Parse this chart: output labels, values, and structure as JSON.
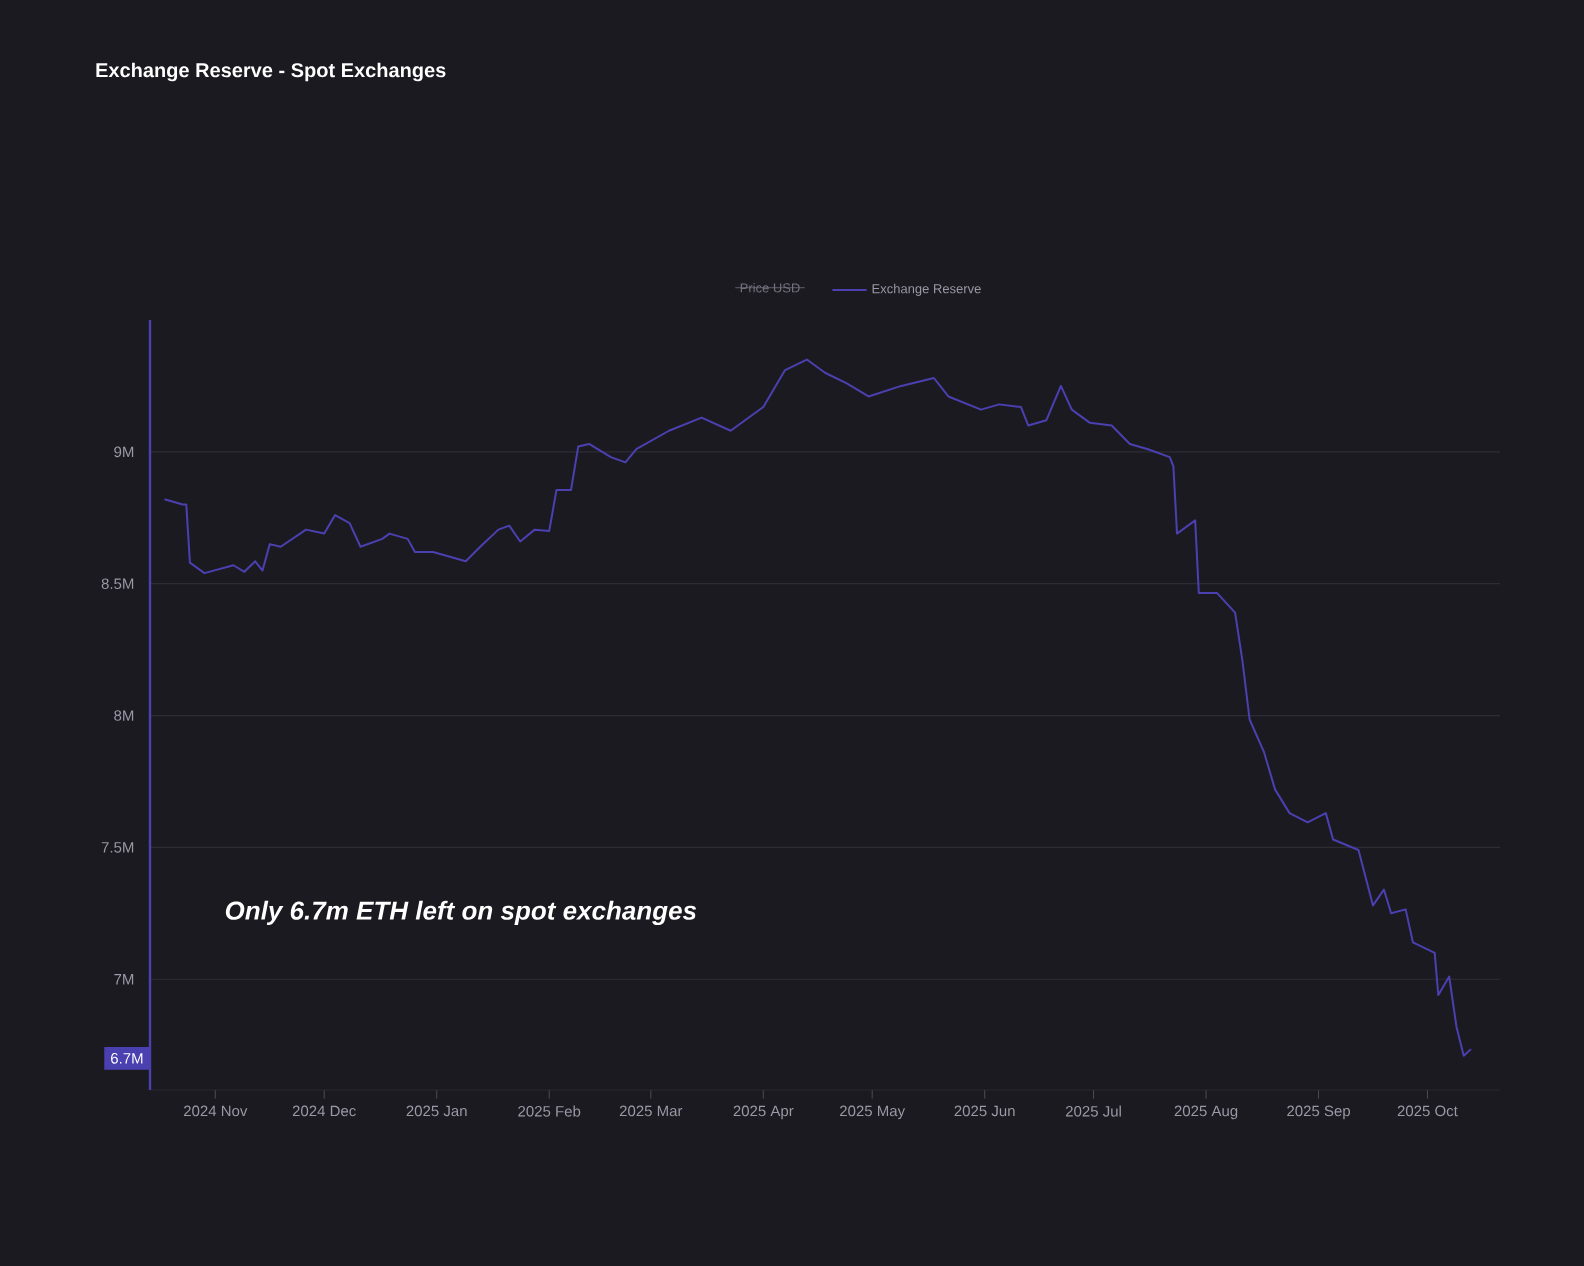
{
  "chart_data": {
    "type": "line",
    "title": "Exchange Reserve - Spot Exchanges",
    "x": [
      "2024-10-18",
      "2024-10-23",
      "2024-10-24",
      "2024-10-25",
      "2024-10-29",
      "2024-11-06",
      "2024-11-09",
      "2024-11-12",
      "2024-11-14",
      "2024-11-16",
      "2024-11-19",
      "2024-11-26",
      "2024-12-01",
      "2024-12-04",
      "2024-12-08",
      "2024-12-11",
      "2024-12-17",
      "2024-12-19",
      "2024-12-24",
      "2024-12-26",
      "2024-12-31",
      "2025-01-09",
      "2025-01-13",
      "2025-01-18",
      "2025-01-21",
      "2025-01-24",
      "2025-01-28",
      "2025-02-01",
      "2025-02-03",
      "2025-02-07",
      "2025-02-09",
      "2025-02-12",
      "2025-02-18",
      "2025-02-22",
      "2025-02-25",
      "2025-03-06",
      "2025-03-15",
      "2025-03-23",
      "2025-04-01",
      "2025-04-07",
      "2025-04-13",
      "2025-04-18",
      "2025-04-24",
      "2025-04-30",
      "2025-05-09",
      "2025-05-18",
      "2025-05-22",
      "2025-05-31",
      "2025-06-05",
      "2025-06-11",
      "2025-06-13",
      "2025-06-18",
      "2025-06-22",
      "2025-06-25",
      "2025-06-30",
      "2025-07-06",
      "2025-07-11",
      "2025-07-16",
      "2025-07-22",
      "2025-07-23",
      "2025-07-24",
      "2025-07-29",
      "2025-07-30",
      "2025-08-04",
      "2025-08-09",
      "2025-08-11",
      "2025-08-13",
      "2025-08-17",
      "2025-08-20",
      "2025-08-24",
      "2025-08-29",
      "2025-09-03",
      "2025-09-05",
      "2025-09-12",
      "2025-09-16",
      "2025-09-19",
      "2025-09-21",
      "2025-09-25",
      "2025-09-27",
      "2025-10-03",
      "2025-10-04",
      "2025-10-07",
      "2025-10-09",
      "2025-10-11",
      "2025-10-13"
    ],
    "series": [
      {
        "name": "Exchange Reserve",
        "color": "#4b40b0",
        "values": [
          8820000,
          8800000,
          8800000,
          8580000,
          8540000,
          8570000,
          8545000,
          8585000,
          8550000,
          8650000,
          8640000,
          8705000,
          8690000,
          8760000,
          8730000,
          8640000,
          8670000,
          8690000,
          8670000,
          8620000,
          8620000,
          8585000,
          8640000,
          8705000,
          8720000,
          8660000,
          8705000,
          8700000,
          8855000,
          8855000,
          9020000,
          9030000,
          8980000,
          8960000,
          9010000,
          9080000,
          9130000,
          9080000,
          9170000,
          9310000,
          9350000,
          9300000,
          9260000,
          9210000,
          9250000,
          9280000,
          9210000,
          9160000,
          9180000,
          9170000,
          9100000,
          9120000,
          9250000,
          9160000,
          9110000,
          9100000,
          9030000,
          9010000,
          8980000,
          8945000,
          8690000,
          8740000,
          8465000,
          8465000,
          8390000,
          8210000,
          7985000,
          7860000,
          7720000,
          7630000,
          7595000,
          7630000,
          7530000,
          7490000,
          7280000,
          7340000,
          7250000,
          7265000,
          7140000,
          7100000,
          6940000,
          7010000,
          6820000,
          6710000,
          6735000
        ]
      }
    ],
    "xlim": [
      "2024-10-14",
      "2025-10-21"
    ],
    "xticks": [
      {
        "value": "2024-11-01",
        "label": "2024 Nov"
      },
      {
        "value": "2024-12-01",
        "label": "2024 Dec"
      },
      {
        "value": "2025-01-01",
        "label": "2025 Jan"
      },
      {
        "value": "2025-02-01",
        "label": "2025 Feb"
      },
      {
        "value": "2025-03-01",
        "label": "2025 Mar"
      },
      {
        "value": "2025-04-01",
        "label": "2025 Apr"
      },
      {
        "value": "2025-05-01",
        "label": "2025 May"
      },
      {
        "value": "2025-06-01",
        "label": "2025 Jun"
      },
      {
        "value": "2025-07-01",
        "label": "2025 Jul"
      },
      {
        "value": "2025-08-01",
        "label": "2025 Aug"
      },
      {
        "value": "2025-09-01",
        "label": "2025 Sep"
      },
      {
        "value": "2025-10-01",
        "label": "2025 Oct"
      }
    ],
    "ylim": [
      6580000,
      9500000
    ],
    "yticks": [
      {
        "value": 7000000,
        "label": "7M"
      },
      {
        "value": 7500000,
        "label": "7.5M"
      },
      {
        "value": 8000000,
        "label": "8M"
      },
      {
        "value": 8500000,
        "label": "8.5M"
      },
      {
        "value": 9000000,
        "label": "9M"
      }
    ],
    "grid": "y",
    "legend": "top",
    "marker": "none",
    "line_style": "solid",
    "annotations": [
      "Price USD",
      "Only 6.7m ETH left on spot exchanges",
      {
        "text": "6.7M",
        "y": 6700000
      }
    ]
  }
}
